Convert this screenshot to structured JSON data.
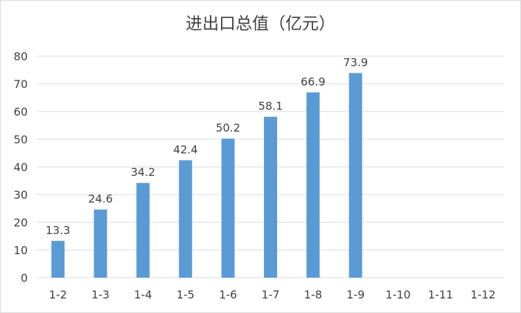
{
  "chart_data": {
    "type": "bar",
    "title": "进出口总值（亿元）",
    "categories": [
      "1-2",
      "1-3",
      "1-4",
      "1-5",
      "1-6",
      "1-7",
      "1-8",
      "1-9",
      "1-10",
      "1-11",
      "1-12"
    ],
    "values": [
      13.3,
      24.6,
      34.2,
      42.4,
      50.2,
      58.1,
      66.9,
      73.9,
      null,
      null,
      null
    ],
    "data_labels": [
      "13.3",
      "24.6",
      "34.2",
      "42.4",
      "50.2",
      "58.1",
      "66.9",
      "73.9",
      "",
      "",
      ""
    ],
    "ylim": [
      0,
      80
    ],
    "yticks": [
      "0",
      "10",
      "20",
      "30",
      "40",
      "50",
      "60",
      "70",
      "80"
    ],
    "xlabel": "",
    "ylabel": "",
    "grid": true,
    "legend": "none",
    "colors": {
      "bar": "#5b9bd5",
      "grid": "#d9d9d9",
      "text": "#404040"
    }
  }
}
